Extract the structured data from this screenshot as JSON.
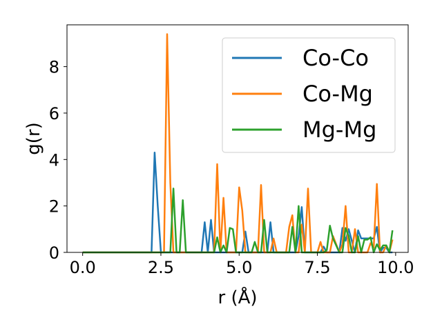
{
  "chart_data": {
    "type": "line",
    "title": "",
    "xlabel": "r (Å)",
    "ylabel": "g(r)",
    "xlim": [
      -0.5,
      10.4
    ],
    "ylim": [
      0,
      9.8
    ],
    "xticks": [
      0.0,
      2.5,
      5.0,
      7.5,
      10.0
    ],
    "xtick_labels": [
      "0.0",
      "2.5",
      "5.0",
      "7.5",
      "10.0"
    ],
    "yticks": [
      0,
      2,
      4,
      6,
      8
    ],
    "ytick_labels": [
      "0",
      "2",
      "4",
      "6",
      "8"
    ],
    "grid": false,
    "legend_position": "top-right",
    "series": [
      {
        "name": "Co-Co",
        "color": "#1f77b4",
        "x": [
          0.0,
          2.2,
          2.3,
          2.4,
          2.5,
          3.8,
          3.9,
          4.0,
          4.1,
          4.2,
          5.1,
          5.2,
          5.3,
          5.9,
          6.0,
          6.1,
          6.2,
          6.8,
          6.9,
          7.0,
          7.1,
          7.6,
          7.7,
          7.8,
          7.9,
          8.0,
          8.2,
          8.3,
          8.4,
          8.5,
          8.6,
          8.7,
          8.8,
          8.9,
          9.0,
          9.1,
          9.2,
          9.3,
          9.4,
          9.5,
          9.6,
          9.7,
          9.8,
          9.9
        ],
        "y": [
          0.0,
          0.0,
          4.3,
          2.0,
          0.0,
          0.0,
          1.3,
          0.0,
          1.4,
          0.0,
          0.0,
          0.9,
          0.0,
          0.0,
          1.3,
          0.0,
          0.0,
          0.0,
          0.7,
          1.95,
          0.0,
          0.0,
          0.25,
          0.0,
          0.0,
          0.0,
          0.0,
          1.05,
          0.5,
          1.0,
          0.5,
          0.0,
          0.95,
          0.6,
          0.6,
          0.6,
          0.6,
          0.6,
          1.1,
          0.0,
          0.2,
          0.2,
          0.0,
          0.0
        ]
      },
      {
        "name": "Co-Mg",
        "color": "#ff7f0e",
        "x": [
          0.0,
          2.55,
          2.6,
          2.7,
          2.8,
          2.9,
          4.1,
          4.2,
          4.3,
          4.4,
          4.5,
          4.6,
          4.9,
          5.0,
          5.1,
          5.2,
          5.6,
          5.7,
          5.8,
          6.0,
          6.1,
          6.2,
          6.5,
          6.6,
          6.7,
          6.8,
          6.9,
          7.0,
          7.1,
          7.2,
          7.3,
          7.5,
          7.6,
          7.7,
          7.8,
          7.9,
          8.0,
          8.2,
          8.3,
          8.4,
          8.5,
          8.6,
          8.7,
          8.8,
          9.1,
          9.2,
          9.3,
          9.4,
          9.5,
          9.6,
          9.7,
          9.8,
          9.9
        ],
        "y": [
          0.0,
          0.0,
          0.0,
          9.4,
          3.0,
          0.0,
          0.0,
          0.0,
          3.8,
          0.0,
          2.35,
          0.0,
          0.0,
          2.8,
          1.8,
          0.0,
          0.0,
          2.9,
          0.0,
          0.0,
          0.6,
          0.0,
          0.0,
          1.1,
          1.6,
          0.0,
          0.0,
          1.2,
          0.0,
          2.75,
          0.0,
          0.0,
          0.45,
          0.0,
          0.0,
          0.0,
          0.7,
          0.0,
          0.35,
          2.0,
          0.0,
          0.0,
          1.0,
          0.0,
          0.0,
          0.4,
          0.2,
          2.95,
          0.0,
          0.0,
          0.3,
          0.0,
          0.55
        ]
      },
      {
        "name": "Mg-Mg",
        "color": "#2ca02c",
        "x": [
          0.0,
          2.8,
          2.9,
          3.0,
          3.1,
          3.2,
          3.3,
          4.2,
          4.3,
          4.4,
          4.5,
          4.6,
          4.7,
          4.8,
          4.9,
          5.0,
          5.1,
          5.4,
          5.5,
          5.6,
          5.7,
          5.8,
          5.9,
          6.5,
          6.6,
          6.7,
          6.8,
          6.9,
          7.0,
          7.1,
          7.7,
          7.8,
          7.9,
          8.0,
          8.1,
          8.2,
          8.3,
          8.4,
          8.5,
          8.6,
          8.7,
          8.8,
          8.9,
          9.0,
          9.1,
          9.2,
          9.3,
          9.4,
          9.5,
          9.6,
          9.7,
          9.8,
          9.9
        ],
        "y": [
          0.0,
          0.0,
          2.75,
          0.0,
          0.0,
          2.25,
          0.0,
          0.0,
          0.65,
          0.0,
          0.3,
          0.0,
          1.05,
          1.0,
          0.0,
          0.0,
          0.0,
          0.0,
          0.45,
          0.0,
          0.0,
          1.4,
          0.0,
          0.0,
          0.0,
          1.1,
          0.0,
          2.0,
          0.0,
          0.0,
          0.0,
          0.1,
          1.15,
          0.6,
          0.3,
          0.0,
          0.0,
          1.05,
          0.7,
          0.0,
          0.0,
          0.7,
          0.0,
          0.55,
          0.55,
          0.65,
          0.0,
          0.35,
          0.1,
          0.3,
          0.3,
          0.0,
          0.95
        ]
      }
    ]
  }
}
